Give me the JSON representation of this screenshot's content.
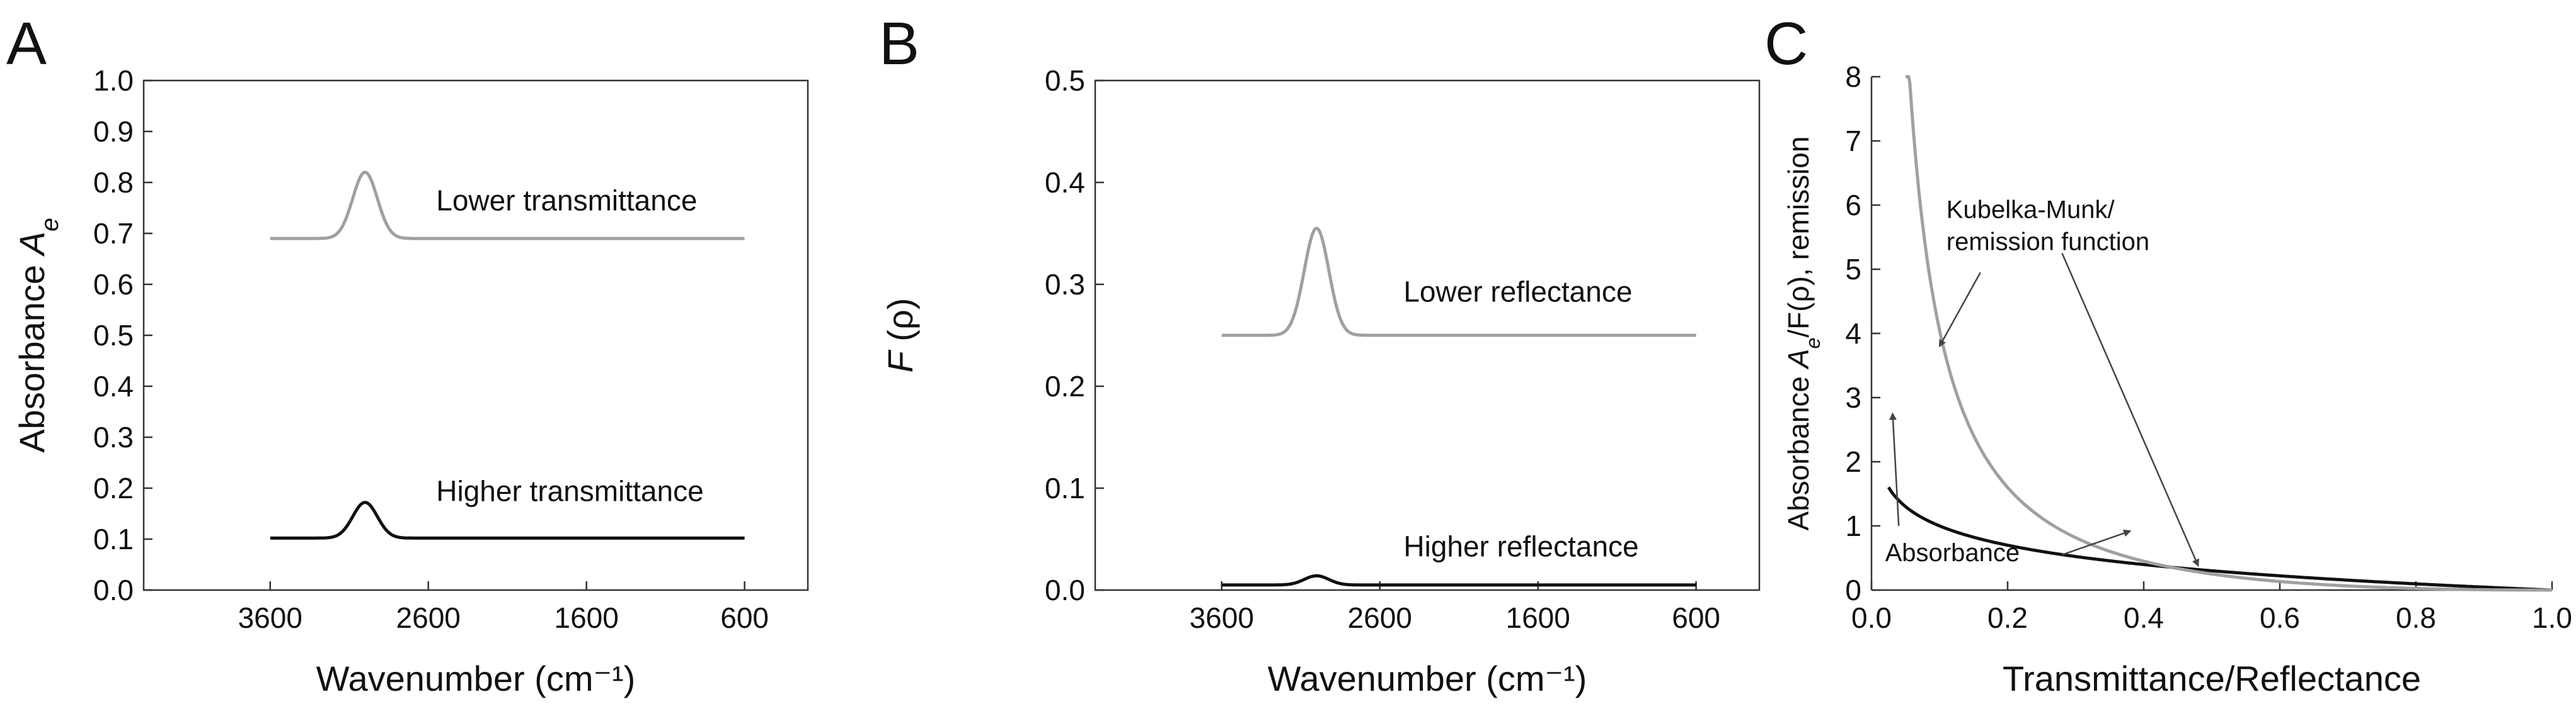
{
  "colors": {
    "black": "#111111",
    "gray": "#a0a0a0",
    "axis": "#333333"
  },
  "chart_data": [
    {
      "type": "line",
      "panel_label": "A",
      "title": "",
      "xlabel": "Wavenumber (cm⁻¹)",
      "ylabel_main": "Absorbance ",
      "ylabel_italic": "A",
      "ylabel_sub": "e",
      "xlim": [
        4400,
        200
      ],
      "ylim": [
        0,
        1.0
      ],
      "xticks": [
        3600,
        2600,
        1600,
        600
      ],
      "xtick_labels": [
        "3600",
        "2600",
        "1600",
        "600"
      ],
      "yticks": [
        0,
        0.1,
        0.2,
        0.3,
        0.4,
        0.5,
        0.6,
        0.7,
        0.8,
        0.9,
        1.0
      ],
      "ytick_labels": [
        "0.0",
        "0.1",
        "0.2",
        "0.3",
        "0.4",
        "0.5",
        "0.6",
        "0.7",
        "0.8",
        "0.9",
        "1.0"
      ],
      "series": [
        {
          "name": "Lower transmittance",
          "color": "gray",
          "baseline": 0.69,
          "peak_center": 3000,
          "peak_width": 110,
          "peak_height": 0.13,
          "x_range": [
            3600,
            600
          ]
        },
        {
          "name": "Higher transmittance",
          "color": "black",
          "baseline": 0.102,
          "peak_center": 3000,
          "peak_width": 110,
          "peak_height": 0.07,
          "x_range": [
            3600,
            600
          ]
        }
      ],
      "annotations": [
        {
          "text": "Lower transmittance",
          "x": 2550,
          "y": 0.745
        },
        {
          "text": "Higher transmittance",
          "x": 2550,
          "y": 0.175
        }
      ]
    },
    {
      "type": "line",
      "panel_label": "B",
      "title": "",
      "xlabel": "Wavenumber (cm⁻¹)",
      "ylabel_main": "",
      "ylabel_italic": "F",
      "ylabel_rest": " (ρ)",
      "xlim": [
        4400,
        200
      ],
      "ylim": [
        0,
        0.5
      ],
      "xticks": [
        3600,
        2600,
        1600,
        600
      ],
      "xtick_labels": [
        "3600",
        "2600",
        "1600",
        "600"
      ],
      "yticks": [
        0,
        0.1,
        0.2,
        0.3,
        0.4,
        0.5
      ],
      "ytick_labels": [
        "0.0",
        "0.1",
        "0.2",
        "0.3",
        "0.4",
        "0.5"
      ],
      "series": [
        {
          "name": "Lower reflectance",
          "color": "gray",
          "baseline": 0.25,
          "peak_center": 3000,
          "peak_width": 110,
          "peak_height": 0.105,
          "x_range": [
            3600,
            600
          ]
        },
        {
          "name": "Higher reflectance",
          "color": "black",
          "baseline": 0.005,
          "peak_center": 3000,
          "peak_width": 110,
          "peak_height": 0.009,
          "x_range": [
            3600,
            600
          ]
        }
      ],
      "annotations": [
        {
          "text": "Lower reflectance",
          "x": 2450,
          "y": 0.283
        },
        {
          "text": "Higher reflectance",
          "x": 2450,
          "y": 0.033
        }
      ]
    },
    {
      "type": "line",
      "panel_label": "C",
      "title": "",
      "xlabel": "Transmittance/Reflectance",
      "ylabel_main": "Absorbance ",
      "ylabel_italic": "A",
      "ylabel_sub": "e",
      "ylabel_rest": "/F(ρ), remission",
      "xlim": [
        0,
        1.0
      ],
      "ylim": [
        0,
        8
      ],
      "xticks": [
        0,
        0.2,
        0.4,
        0.6,
        0.8,
        1.0
      ],
      "xtick_labels": [
        "0.0",
        "0.2",
        "0.4",
        "0.6",
        "0.8",
        "1.0"
      ],
      "yticks": [
        0,
        1,
        2,
        3,
        4,
        5,
        6,
        7,
        8
      ],
      "ytick_labels": [
        "0",
        "1",
        "2",
        "3",
        "4",
        "5",
        "6",
        "7",
        "8"
      ],
      "series": [
        {
          "name": "Absorbance",
          "color": "black",
          "function": "-log10(x)",
          "x_range": [
            0.025,
            1.0
          ]
        },
        {
          "name": "Kubelka-Munk/remission function",
          "color": "gray",
          "function": "(1-x)^2/(2x)",
          "x_range": [
            0.05,
            1.0
          ]
        }
      ],
      "annotations": [
        {
          "text": "Kubelka-Munk/",
          "x": 0.11,
          "y": 5.8
        },
        {
          "text": "remission function",
          "x": 0.11,
          "y": 5.3
        },
        {
          "text": "Absorbance",
          "x": 0.02,
          "y": 0.45
        }
      ],
      "arrows": [
        {
          "from": [
            0.16,
            4.95
          ],
          "to": [
            0.1,
            3.8
          ]
        },
        {
          "from": [
            0.28,
            5.25
          ],
          "to": [
            0.48,
            0.38
          ]
        },
        {
          "from": [
            0.28,
            0.55
          ],
          "to": [
            0.38,
            0.92
          ]
        },
        {
          "from": [
            0.04,
            1.0
          ],
          "to": [
            0.031,
            2.75
          ]
        }
      ]
    }
  ]
}
